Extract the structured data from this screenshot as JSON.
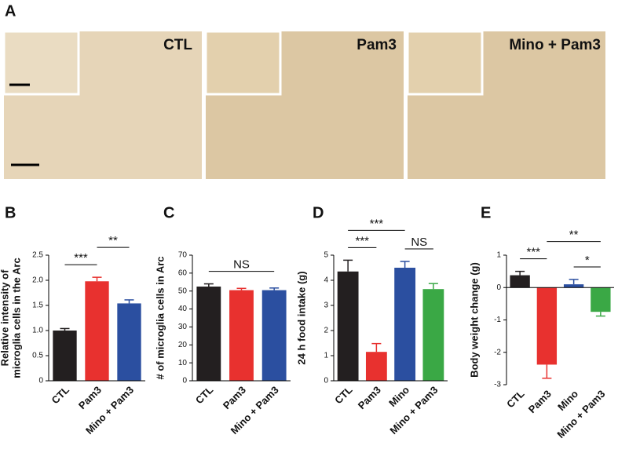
{
  "panel_a": {
    "label": "A",
    "images": [
      "CTL",
      "Pam3",
      "Mino + Pam3"
    ]
  },
  "chart_data": [
    {
      "type": "bar",
      "panel": "B",
      "ylabel": [
        "Relative intensity of",
        "microglia cells in the Arc"
      ],
      "categories": [
        "CTL",
        "Pam3",
        "Mino + Pam3"
      ],
      "values": [
        1.0,
        1.98,
        1.54
      ],
      "errors": [
        0.04,
        0.08,
        0.07
      ],
      "colors": [
        "#231f20",
        "#e8312f",
        "#2b4fa0"
      ],
      "ylim": [
        0,
        2.5
      ],
      "yticks": [
        0,
        0.5,
        {
          "value": 1,
          "label": "1.0"
        },
        1.5,
        {
          "value": 2,
          "label": "2.0"
        },
        2.5
      ],
      "annotations": [
        {
          "text": "***",
          "between": [
            "CTL",
            "Pam3"
          ]
        },
        {
          "text": "**",
          "between": [
            "Pam3",
            "Mino + Pam3"
          ]
        }
      ]
    },
    {
      "type": "bar",
      "panel": "C",
      "ylabel": [
        "# of microglia cells in Arc"
      ],
      "categories": [
        "CTL",
        "Pam3",
        "Mino + Pam3"
      ],
      "values": [
        52.5,
        50.5,
        50.5
      ],
      "errors": [
        1.5,
        1.0,
        1.2
      ],
      "colors": [
        "#231f20",
        "#e8312f",
        "#2b4fa0"
      ],
      "ylim": [
        0,
        70
      ],
      "yticks": [
        0,
        10,
        20,
        30,
        40,
        50,
        60,
        70
      ],
      "annotations": [
        {
          "text": "NS",
          "between": [
            "CTL",
            "Mino + Pam3"
          ]
        }
      ]
    },
    {
      "type": "bar",
      "panel": "D",
      "ylabel": [
        "24 h food intake (g)"
      ],
      "categories": [
        "CTL",
        "Pam3",
        "Mino",
        "Mino + Pam3"
      ],
      "values": [
        4.35,
        1.15,
        4.5,
        3.65
      ],
      "errors": [
        0.45,
        0.33,
        0.25,
        0.22
      ],
      "colors": [
        "#231f20",
        "#e8312f",
        "#2b4fa0",
        "#3aa845"
      ],
      "ylim": [
        0,
        5
      ],
      "yticks": [
        0,
        1,
        2,
        3,
        4,
        5
      ],
      "annotations": [
        {
          "text": "***",
          "between": [
            "CTL",
            "Pam3"
          ]
        },
        {
          "text": "NS",
          "between": [
            "Mino",
            "Mino + Pam3"
          ]
        },
        {
          "text": "***",
          "between": [
            "CTL",
            "Mino"
          ]
        }
      ]
    },
    {
      "type": "bar",
      "panel": "E",
      "ylabel": [
        "Body weight change (g)"
      ],
      "categories": [
        "CTL",
        "Pam3",
        "Mino",
        "Mino + Pam3"
      ],
      "values": [
        0.38,
        -2.38,
        0.1,
        -0.75
      ],
      "errors": [
        0.12,
        0.42,
        0.15,
        0.13
      ],
      "colors": [
        "#231f20",
        "#e8312f",
        "#2b4fa0",
        "#3aa845"
      ],
      "ylim": [
        -3,
        1
      ],
      "yticks": [
        -3,
        -2,
        -1,
        0,
        1
      ],
      "annotations": [
        {
          "text": "***",
          "between": [
            "CTL",
            "Pam3"
          ]
        },
        {
          "text": "*",
          "between": [
            "Mino",
            "Mino + Pam3"
          ]
        },
        {
          "text": "**",
          "between": [
            "Pam3",
            "Mino + Pam3"
          ]
        }
      ]
    }
  ]
}
